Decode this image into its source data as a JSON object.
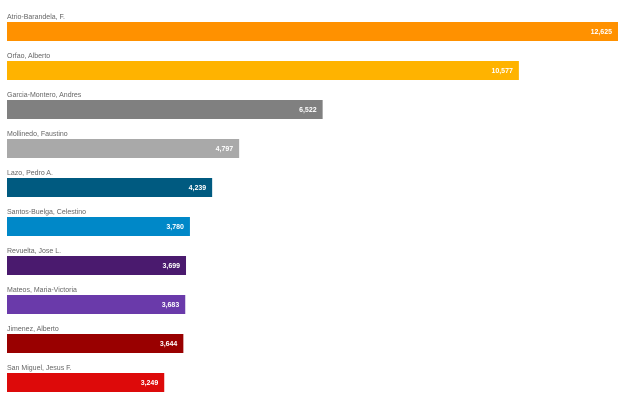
{
  "chart_data": {
    "type": "bar",
    "orientation": "horizontal",
    "categories": [
      "Atrio-Barandela, F.",
      "Orfao, Alberto",
      "Garcia-Montero, Andres",
      "Mollinedo, Faustino",
      "Lazo, Pedro A.",
      "Santos-Buelga, Celestino",
      "Revuelta, Jose L.",
      "Mateos, Maria-Victoria",
      "Jimenez, Alberto",
      "San Miguel, Jesus F."
    ],
    "values": [
      12625,
      10577,
      6522,
      4797,
      4239,
      3780,
      3699,
      3683,
      3644,
      3249
    ],
    "value_labels": [
      "12,625",
      "10,577",
      "6,522",
      "4,797",
      "4,239",
      "3,780",
      "3,699",
      "3,683",
      "3,644",
      "3,249"
    ],
    "colors": [
      "#ff9100",
      "#ffb300",
      "#808080",
      "#a9a9a9",
      "#005a80",
      "#0088c8",
      "#4a1a6e",
      "#6a3aaa",
      "#990000",
      "#dd0a0a"
    ]
  }
}
